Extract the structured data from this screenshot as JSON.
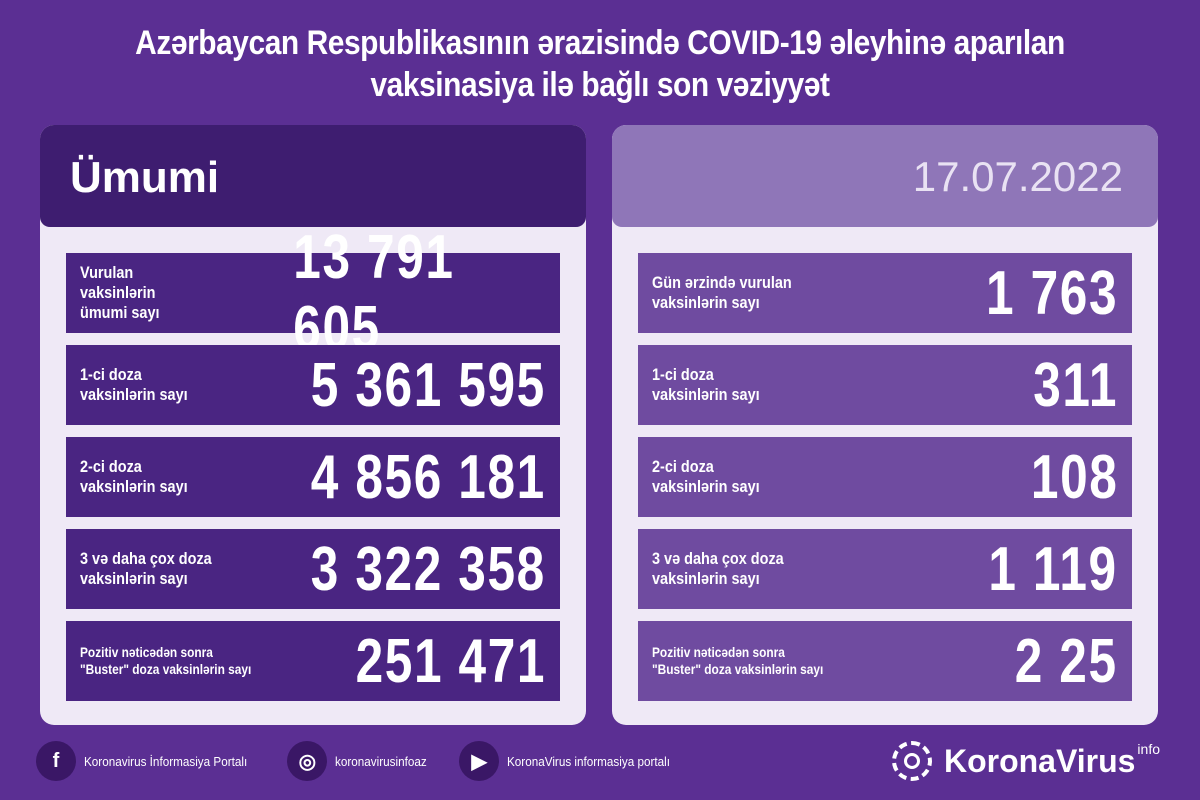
{
  "title": {
    "line1": "Azərbaycan Respublikasının ərazisində COVID-19 əleyhinə aparılan",
    "line2": "vaksinasiya ilə bağlı son vəziyyət"
  },
  "left": {
    "header": "Ümumi",
    "rows": [
      {
        "label": "Vurulan vaksinlərin\nümumi sayı",
        "value": "13 791 605"
      },
      {
        "label": "1-ci doza\nvaksinlərin sayı",
        "value": "5 361 595"
      },
      {
        "label": "2-ci doza\nvaksinlərin sayı",
        "value": "4 856 181"
      },
      {
        "label": "3 və daha çox doza\nvaksinlərin sayı",
        "value": "3 322 358"
      },
      {
        "label": "Pozitiv nəticədən sonra\n\"Buster\" doza vaksinlərin sayı",
        "value": "251 471"
      }
    ]
  },
  "right": {
    "header": "17.07.2022",
    "rows": [
      {
        "label": "Gün ərzində vurulan\nvaksinlərin sayı",
        "value": "1 763"
      },
      {
        "label": "1-ci doza\nvaksinlərin sayı",
        "value": "311"
      },
      {
        "label": "2-ci doza\nvaksinlərin sayı",
        "value": "108"
      },
      {
        "label": "3 və daha çox doza\nvaksinlərin sayı",
        "value": "1 119"
      },
      {
        "label": "Pozitiv nəticədən sonra\n\"Buster\" doza vaksinlərin sayı",
        "value": "2 25"
      }
    ]
  },
  "footer": {
    "facebook": "Koronavirus İnformasiya Portalı",
    "instagram": "koronavirusinfoaz",
    "youtube": "KoronaVirus informasiya portalı",
    "logo": "KoronaVirus",
    "logo_sup": "info"
  }
}
